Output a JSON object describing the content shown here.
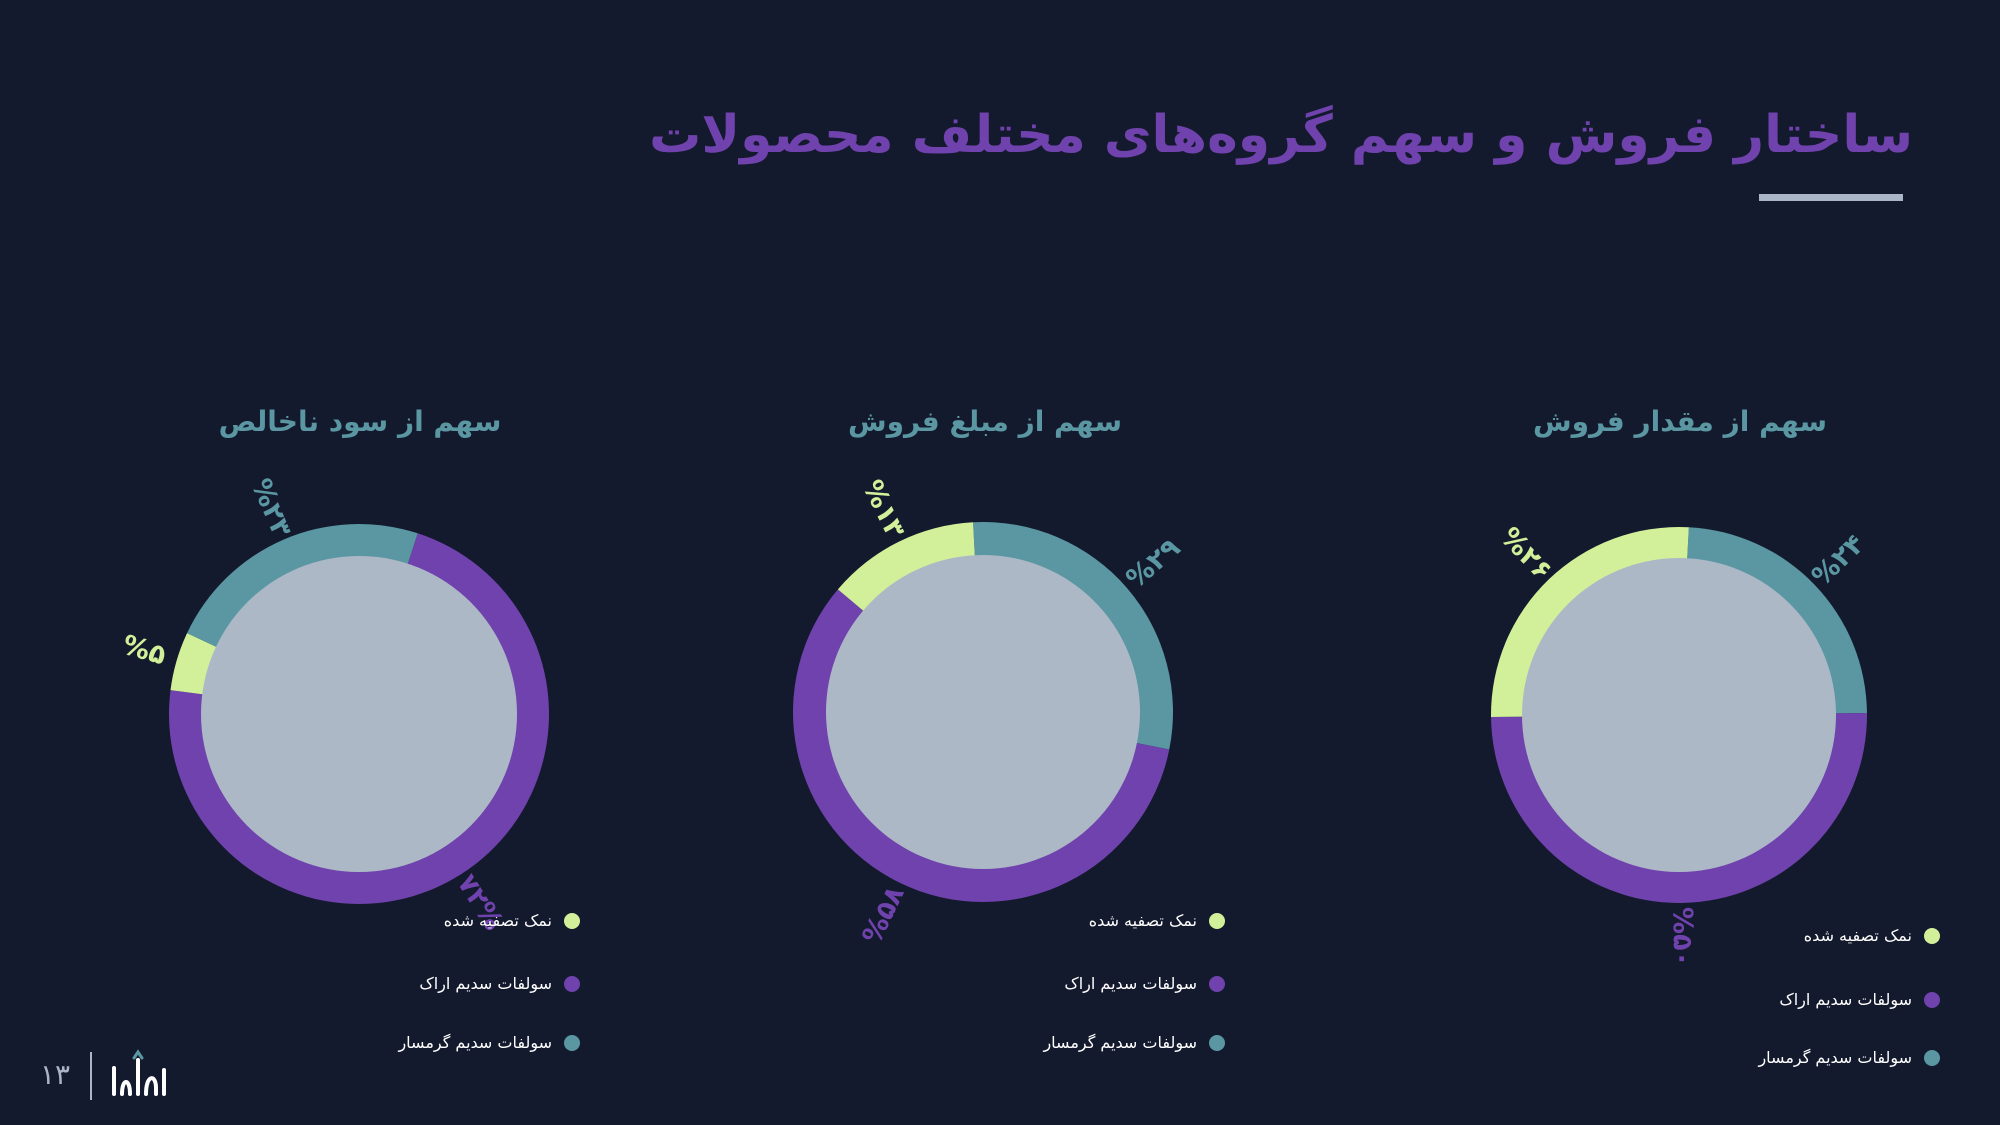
{
  "title": "ساختار فروش و سهم گروه‌های مختلف محصولات",
  "colors": {
    "background": "#141a2d",
    "title": "#6f42ad",
    "subtitle": "#5a97a3",
    "inner_disc": "#adb8c6",
    "green": "#d2f09a",
    "purple": "#6f42ad",
    "teal": "#5a97a3"
  },
  "legend": [
    "نمک تصفیه شده",
    "سولفات سدیم اراک",
    "سولفات سدیم گرمسار"
  ],
  "chart_data": [
    {
      "type": "pie",
      "title": "سهم از مقدار فروش",
      "categories": [
        "سولفات سدیم گرمسار",
        "سولفات سدیم اراک",
        "نمک تصفیه شده"
      ],
      "values": [
        24,
        50,
        26
      ],
      "labels": [
        "%۲۴",
        "%۵۰",
        "%۲۶"
      ]
    },
    {
      "type": "pie",
      "title": "سهم از مبلغ فروش",
      "categories": [
        "سولفات سدیم گرمسار",
        "سولفات سدیم اراک",
        "نمک تصفیه شده"
      ],
      "values": [
        29,
        58,
        13
      ],
      "labels": [
        "%۲۹",
        "%۵۸",
        "%۱۳"
      ]
    },
    {
      "type": "pie",
      "title": "سهم از سود ناخالص",
      "categories": [
        "سولفات سدیم اراک",
        "نمک تصفیه شده",
        "سولفات سدیم گرمسار"
      ],
      "values": [
        72,
        5,
        23
      ],
      "labels": [
        "۷۲%",
        "%۵",
        "%۲۳"
      ]
    }
  ],
  "footer": {
    "page_number": "۱۳",
    "logo_text": "ماراب"
  }
}
